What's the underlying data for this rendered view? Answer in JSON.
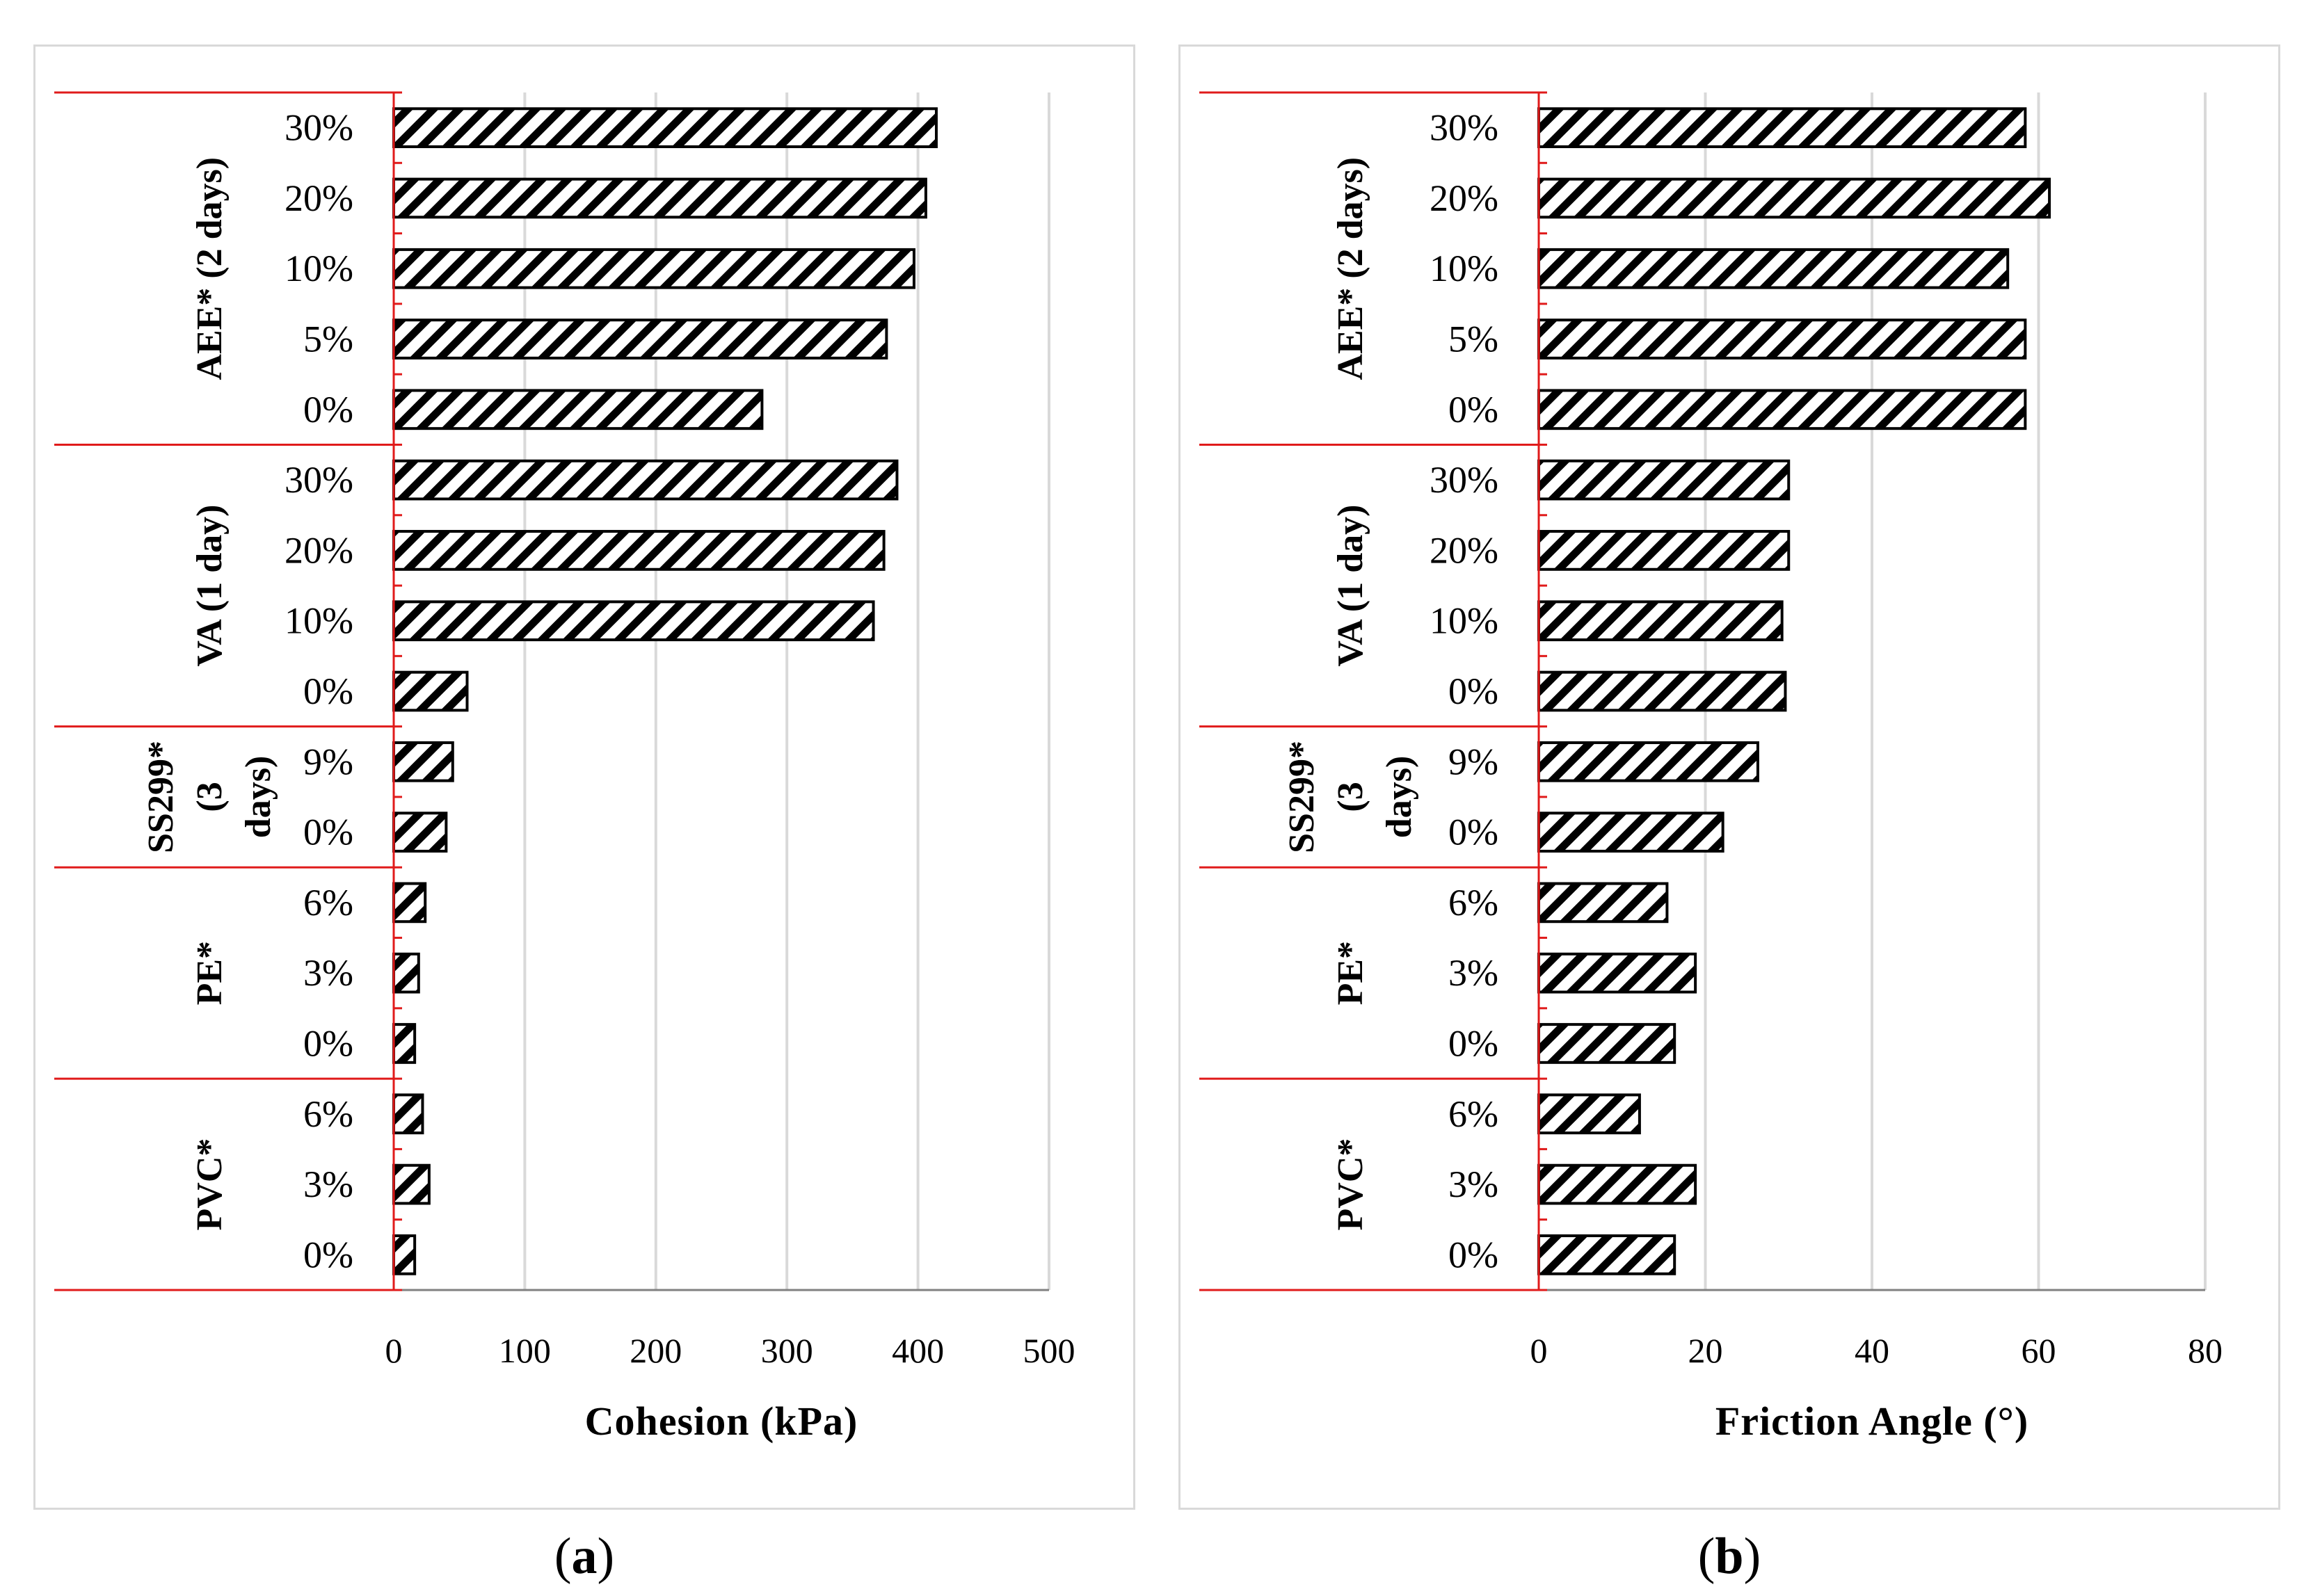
{
  "figure": {
    "caption_a": "(a)",
    "caption_b": "(b)",
    "caption_a_open": "(",
    "caption_a_letter": "a",
    "caption_a_close": ")",
    "caption_b_open": "(",
    "caption_b_letter": "b",
    "caption_b_close": ")"
  },
  "chart_data": [
    {
      "type": "bar",
      "orientation": "horizontal",
      "panel": "(a)",
      "title": "",
      "xlabel": "Cohesion (kPa)",
      "ylabel": "",
      "xlim": [
        0,
        500
      ],
      "xticks": [
        0,
        100,
        200,
        300,
        400,
        500
      ],
      "grid": "vertical",
      "pattern": "diagonal hatch",
      "groups": [
        {
          "name": "AEE* (2 days)",
          "lines": [
            "AEE* (2 days)"
          ],
          "categories": [
            "30%",
            "20%",
            "10%",
            "5%",
            "0%"
          ],
          "values": [
            414,
            406,
            397,
            376,
            281
          ]
        },
        {
          "name": "VA (1 day)",
          "lines": [
            "VA (1 day)"
          ],
          "categories": [
            "30%",
            "20%",
            "10%",
            "0%"
          ],
          "values": [
            384,
            374,
            366,
            56
          ]
        },
        {
          "name": "SS299* (3 days)",
          "lines": [
            "SS299*",
            "(3",
            "days)"
          ],
          "categories": [
            "9%",
            "0%"
          ],
          "values": [
            45,
            40
          ]
        },
        {
          "name": "PE*",
          "lines": [
            "PE*"
          ],
          "categories": [
            "6%",
            "3%",
            "0%"
          ],
          "values": [
            24,
            19,
            16
          ]
        },
        {
          "name": "PVC*",
          "lines": [
            "PVC*"
          ],
          "categories": [
            "6%",
            "3%",
            "0%"
          ],
          "values": [
            22,
            27,
            16
          ]
        }
      ]
    },
    {
      "type": "bar",
      "orientation": "horizontal",
      "panel": "(b)",
      "title": "",
      "xlabel": "Friction Angle (°)",
      "ylabel": "",
      "xlim": [
        0,
        80
      ],
      "xticks": [
        0,
        20,
        40,
        60,
        80
      ],
      "grid": "vertical",
      "pattern": "diagonal hatch",
      "groups": [
        {
          "name": "AEE* (2 days)",
          "lines": [
            "AEE* (2 days)"
          ],
          "categories": [
            "30%",
            "20%",
            "10%",
            "5%",
            "0%"
          ],
          "values": [
            58.4,
            61.3,
            56.3,
            58.4,
            58.4
          ]
        },
        {
          "name": "VA (1 day)",
          "lines": [
            "VA (1 day)"
          ],
          "categories": [
            "30%",
            "20%",
            "10%",
            "0%"
          ],
          "values": [
            30,
            30,
            29.2,
            29.6
          ]
        },
        {
          "name": "SS299* (3 days)",
          "lines": [
            "SS299*",
            "(3",
            "days)"
          ],
          "categories": [
            "9%",
            "0%"
          ],
          "values": [
            26.3,
            22.1
          ]
        },
        {
          "name": "PE*",
          "lines": [
            "PE*"
          ],
          "categories": [
            "6%",
            "3%",
            "0%"
          ],
          "values": [
            15.4,
            18.8,
            16.3
          ]
        },
        {
          "name": "PVC*",
          "lines": [
            "PVC*"
          ],
          "categories": [
            "6%",
            "3%",
            "0%"
          ],
          "values": [
            12.1,
            18.8,
            16.3
          ]
        }
      ]
    }
  ]
}
